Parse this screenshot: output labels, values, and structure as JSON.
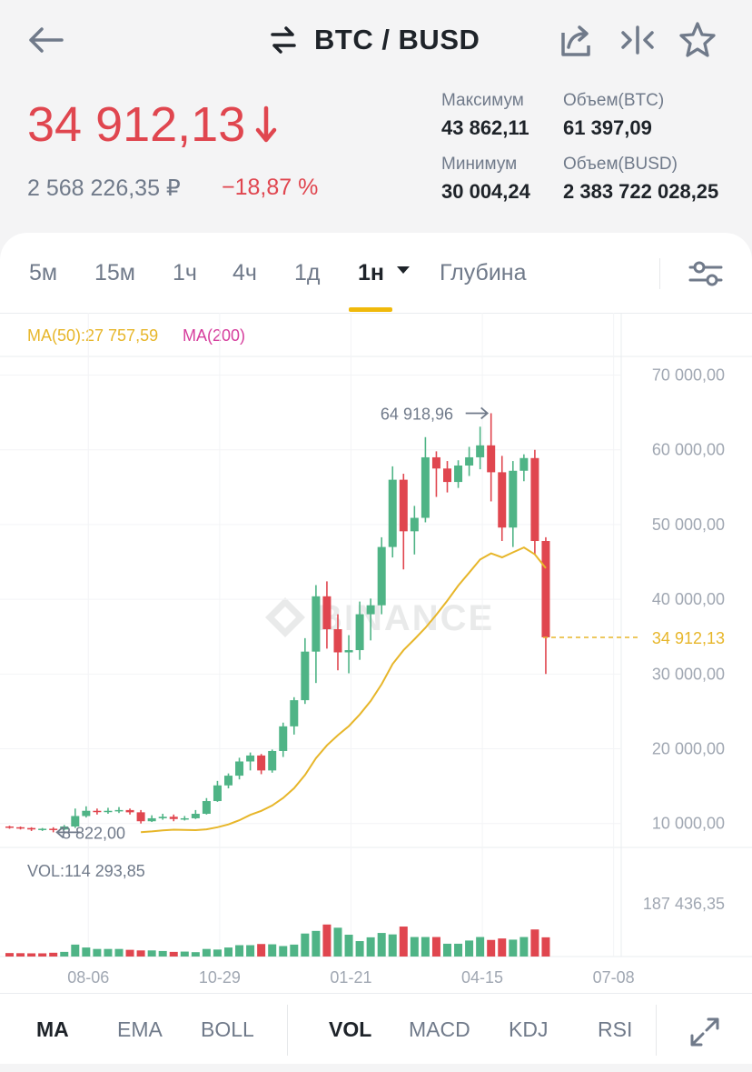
{
  "header": {
    "title": "BTC / BUSD",
    "price": "34 912,13",
    "price_rub": "2 568 226,35 ₽",
    "change": "−18,87 %",
    "stats": [
      {
        "label": "Максимум",
        "value": "43 862,11"
      },
      {
        "label": "Объем(BTC)",
        "value": "61 397,09"
      },
      {
        "label": "Минимум",
        "value": "30 004,24"
      },
      {
        "label": "Объем(BUSD)",
        "value": "2 383 722 028,25"
      }
    ],
    "icons": [
      "back-arrow-icon",
      "swap-icon",
      "share-icon",
      "compare-icon",
      "star-icon"
    ]
  },
  "tabs": {
    "items": [
      "5м",
      "15м",
      "1ч",
      "4ч",
      "1д",
      "1н",
      "Глубина"
    ],
    "active": "1н"
  },
  "indicator_tabs": {
    "items": [
      "MA",
      "EMA",
      "BOLL",
      "VOL",
      "MACD",
      "KDJ",
      "RSI"
    ],
    "active_main": "MA",
    "active_sub": "VOL"
  },
  "colors": {
    "up": "#4fb486",
    "down": "#e0464f",
    "ma50": "#e7b62a",
    "ma200": "#d63e9d",
    "accent": "#f0b90b"
  },
  "chart_data": {
    "type": "candlestick",
    "y_ticks": [
      "70 000,00",
      "60 000,00",
      "50 000,00",
      "40 000,00",
      "30 000,00",
      "20 000,00",
      "10 000,00"
    ],
    "y_tick_values": [
      70000,
      60000,
      50000,
      40000,
      30000,
      20000,
      10000
    ],
    "ylim": [
      6800,
      72500
    ],
    "x_ticks": [
      "08-06",
      "10-29",
      "01-21",
      "04-15",
      "07-08"
    ],
    "x_tick_index": [
      7.2,
      19.2,
      31.2,
      43.2,
      55.2
    ],
    "ma50_label": "MA(50):27 757,59",
    "ma200_label": "MA(200)",
    "last_price_label": "34 912,13",
    "last_price": 34912.13,
    "max_label": "64 918,96",
    "min_label": "8 822,00",
    "volume_label": "VOL:114 293,85",
    "volume_max_label": "187 436,35",
    "volume_max": 187436.35,
    "watermark": "BINANCE",
    "candles": [
      [
        9600,
        9500,
        9700,
        9300
      ],
      [
        9500,
        9400,
        9600,
        9200
      ],
      [
        9400,
        9200,
        9500,
        9000
      ],
      [
        9200,
        9300,
        9400,
        9000
      ],
      [
        9300,
        9200,
        9500,
        8822
      ],
      [
        9200,
        9600,
        9800,
        9100
      ],
      [
        9600,
        11000,
        12000,
        9400
      ],
      [
        11000,
        11700,
        12300,
        10800
      ],
      [
        11700,
        11600,
        12000,
        11200
      ],
      [
        11600,
        11700,
        12100,
        11300
      ],
      [
        11700,
        11800,
        12200,
        11400
      ],
      [
        11800,
        11500,
        12000,
        11200
      ],
      [
        11500,
        10300,
        11800,
        10000
      ],
      [
        10300,
        10700,
        11100,
        10200
      ],
      [
        10700,
        10900,
        11300,
        10500
      ],
      [
        10900,
        10600,
        11200,
        10300
      ],
      [
        10600,
        10700,
        11000,
        10400
      ],
      [
        10700,
        11300,
        11800,
        10600
      ],
      [
        11300,
        13000,
        13400,
        11200
      ],
      [
        13000,
        15100,
        15700,
        12900
      ],
      [
        15100,
        16400,
        16700,
        14700
      ],
      [
        16400,
        18300,
        18800,
        15900
      ],
      [
        18300,
        19100,
        19500,
        17100
      ],
      [
        19100,
        17100,
        19300,
        16600
      ],
      [
        17100,
        19700,
        19900,
        16800
      ],
      [
        19700,
        23000,
        23500,
        18900
      ],
      [
        23000,
        26500,
        26900,
        21900
      ],
      [
        26500,
        33000,
        34800,
        26000
      ],
      [
        33000,
        40400,
        41900,
        28800
      ],
      [
        40400,
        36000,
        42400,
        33400
      ],
      [
        36000,
        32900,
        38000,
        30500
      ],
      [
        32900,
        33200,
        35200,
        30100
      ],
      [
        33200,
        38000,
        39700,
        31900
      ],
      [
        38000,
        39200,
        40100,
        34500
      ],
      [
        39200,
        47000,
        48300,
        38000
      ],
      [
        47000,
        56000,
        57800,
        45600
      ],
      [
        56000,
        49100,
        56800,
        44000
      ],
      [
        49100,
        50900,
        52500,
        46000
      ],
      [
        50900,
        59000,
        61700,
        50300
      ],
      [
        59000,
        57500,
        59800,
        53700
      ],
      [
        57500,
        55700,
        58500,
        54300
      ],
      [
        55700,
        57900,
        58600,
        54900
      ],
      [
        57900,
        59000,
        60400,
        56500
      ],
      [
        59000,
        60600,
        63100,
        57400
      ],
      [
        60600,
        57000,
        64900,
        53100
      ],
      [
        57000,
        49600,
        59200,
        47800
      ],
      [
        49600,
        57200,
        58500,
        47000
      ],
      [
        57200,
        58900,
        59400,
        55800
      ],
      [
        58900,
        47800,
        60000,
        46000
      ],
      [
        47800,
        34912,
        48300,
        30004
      ]
    ],
    "volumes": [
      [
        12000,
        0
      ],
      [
        11500,
        0
      ],
      [
        11000,
        0
      ],
      [
        11000,
        0
      ],
      [
        13000,
        0
      ],
      [
        16000,
        1
      ],
      [
        41000,
        1
      ],
      [
        31000,
        1
      ],
      [
        26000,
        1
      ],
      [
        26000,
        1
      ],
      [
        26000,
        1
      ],
      [
        23000,
        0
      ],
      [
        21000,
        0
      ],
      [
        21000,
        1
      ],
      [
        19000,
        1
      ],
      [
        16000,
        0
      ],
      [
        17000,
        1
      ],
      [
        15000,
        1
      ],
      [
        26000,
        1
      ],
      [
        24000,
        1
      ],
      [
        31000,
        1
      ],
      [
        39000,
        1
      ],
      [
        39000,
        1
      ],
      [
        43000,
        0
      ],
      [
        42000,
        1
      ],
      [
        36000,
        1
      ],
      [
        41000,
        1
      ],
      [
        79000,
        1
      ],
      [
        88000,
        1
      ],
      [
        110000,
        0
      ],
      [
        99000,
        1
      ],
      [
        75000,
        1
      ],
      [
        53000,
        1
      ],
      [
        66000,
        1
      ],
      [
        81000,
        1
      ],
      [
        76000,
        1
      ],
      [
        103000,
        0
      ],
      [
        67000,
        1
      ],
      [
        67000,
        1
      ],
      [
        67000,
        0
      ],
      [
        44000,
        1
      ],
      [
        44000,
        1
      ],
      [
        55000,
        1
      ],
      [
        67000,
        1
      ],
      [
        57000,
        0
      ],
      [
        62000,
        0
      ],
      [
        58000,
        1
      ],
      [
        67000,
        1
      ],
      [
        93000,
        0
      ],
      [
        66000,
        0
      ]
    ]
  }
}
